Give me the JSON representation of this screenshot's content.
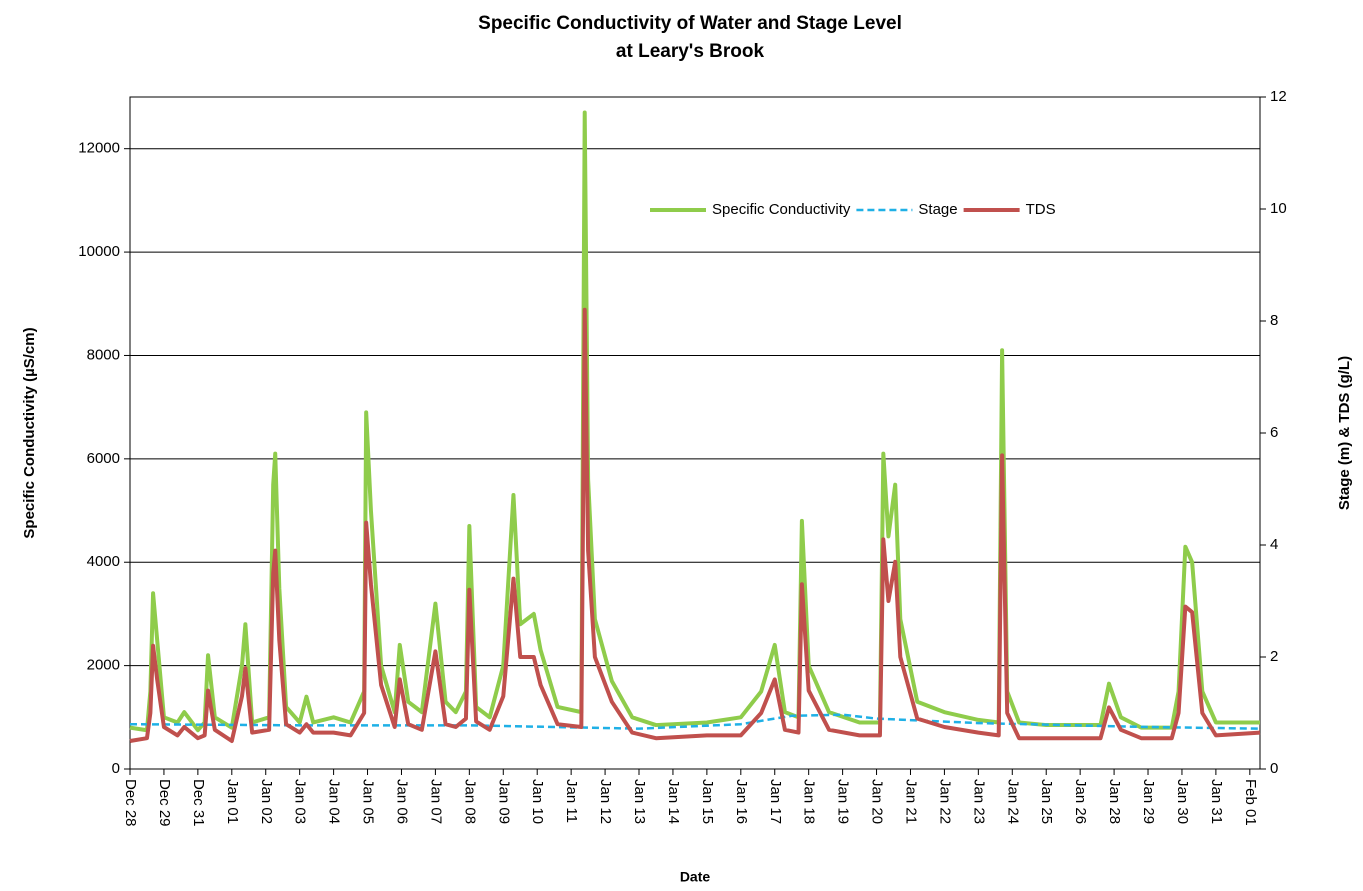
{
  "chart_data": {
    "type": "line",
    "title": [
      "Specific Conductivity of Water and Stage Level",
      "at Leary's Brook"
    ],
    "xlabel": "Date",
    "ylabel": "Specific Conductivity (µS/cm)",
    "y2label": "Stage (m) & TDS (g/L)",
    "xlim": [
      0,
      33.3
    ],
    "xticks": [
      {
        "value": 0,
        "label": "Dec 28"
      },
      {
        "value": 1,
        "label": "Dec 29"
      },
      {
        "value": 2,
        "label": "Dec 31"
      },
      {
        "value": 3,
        "label": "Jan 01"
      },
      {
        "value": 4,
        "label": "Jan 02"
      },
      {
        "value": 5,
        "label": "Jan 03"
      },
      {
        "value": 6,
        "label": "Jan 04"
      },
      {
        "value": 7,
        "label": "Jan 05"
      },
      {
        "value": 8,
        "label": "Jan 06"
      },
      {
        "value": 9,
        "label": "Jan 07"
      },
      {
        "value": 10,
        "label": "Jan 08"
      },
      {
        "value": 11,
        "label": "Jan 09"
      },
      {
        "value": 12,
        "label": "Jan 10"
      },
      {
        "value": 13,
        "label": "Jan 11"
      },
      {
        "value": 14,
        "label": "Jan 12"
      },
      {
        "value": 15,
        "label": "Jan 13"
      },
      {
        "value": 16,
        "label": "Jan 14"
      },
      {
        "value": 17,
        "label": "Jan 15"
      },
      {
        "value": 18,
        "label": "Jan 16"
      },
      {
        "value": 19,
        "label": "Jan 17"
      },
      {
        "value": 20,
        "label": "Jan 18"
      },
      {
        "value": 21,
        "label": "Jan 19"
      },
      {
        "value": 22,
        "label": "Jan 20"
      },
      {
        "value": 23,
        "label": "Jan 21"
      },
      {
        "value": 24,
        "label": "Jan 22"
      },
      {
        "value": 25,
        "label": "Jan 23"
      },
      {
        "value": 26,
        "label": "Jan 24"
      },
      {
        "value": 27,
        "label": "Jan 25"
      },
      {
        "value": 28,
        "label": "Jan 26"
      },
      {
        "value": 29,
        "label": "Jan 28"
      },
      {
        "value": 30,
        "label": "Jan 29"
      },
      {
        "value": 31,
        "label": "Jan 30"
      },
      {
        "value": 32,
        "label": "Jan 31"
      },
      {
        "value": 33,
        "label": "Feb 01"
      }
    ],
    "ylim": [
      0,
      13000
    ],
    "yticks": [
      0,
      2000,
      4000,
      6000,
      8000,
      10000,
      12000
    ],
    "y2lim": [
      0,
      12
    ],
    "y2ticks": [
      0,
      2,
      4,
      6,
      8,
      10,
      12
    ],
    "grid": true,
    "series": [
      {
        "name": "Specific Conductivity",
        "color": "#8fcc4b",
        "dash": false,
        "x": [
          0,
          0.5,
          0.6,
          0.68,
          0.8,
          1.0,
          1.4,
          1.6,
          2.0,
          2.2,
          2.3,
          2.5,
          3.0,
          3.3,
          3.4,
          3.6,
          4.1,
          4.22,
          4.28,
          4.4,
          4.6,
          5.0,
          5.2,
          5.4,
          6.0,
          6.5,
          6.9,
          6.96,
          7.1,
          7.4,
          7.8,
          7.95,
          8.2,
          8.6,
          9.0,
          9.3,
          9.6,
          9.9,
          10.0,
          10.2,
          10.6,
          11.0,
          11.3,
          11.5,
          11.9,
          12.1,
          12.6,
          13.3,
          13.4,
          13.5,
          13.7,
          14.2,
          14.8,
          15.5,
          17.0,
          18.0,
          18.6,
          19.0,
          19.3,
          19.7,
          19.8,
          20.0,
          20.6,
          21.5,
          22.1,
          22.2,
          22.35,
          22.55,
          22.7,
          23.2,
          24.0,
          25.0,
          25.6,
          25.7,
          25.85,
          26.2,
          27.0,
          28.6,
          28.85,
          29.2,
          29.8,
          30.7,
          30.9,
          31.1,
          31.3,
          31.6,
          32.0,
          33.3
        ],
        "values": [
          800,
          750,
          1500,
          3400,
          2500,
          1000,
          900,
          1100,
          750,
          900,
          2200,
          1000,
          800,
          2000,
          2800,
          900,
          1000,
          5500,
          6100,
          3500,
          1200,
          900,
          1400,
          900,
          1000,
          900,
          1500,
          6900,
          5000,
          2000,
          1100,
          2400,
          1300,
          1100,
          3200,
          1300,
          1100,
          1500,
          4700,
          1200,
          1000,
          2000,
          5300,
          2800,
          3000,
          2300,
          1200,
          1100,
          12700,
          5600,
          2900,
          1700,
          1000,
          850,
          900,
          1000,
          1500,
          2400,
          1100,
          1000,
          4800,
          2000,
          1100,
          900,
          900,
          6100,
          4500,
          5500,
          2900,
          1300,
          1100,
          950,
          900,
          8100,
          1500,
          900,
          850,
          850,
          1650,
          1000,
          800,
          800,
          1500,
          4300,
          4000,
          1500,
          900,
          900
        ]
      },
      {
        "name": "Stage",
        "color": "#1fb0e6",
        "dash": true,
        "axis": "y2",
        "x": [
          0,
          5,
          10,
          15,
          18,
          19.5,
          21,
          22,
          25,
          30,
          33.3
        ],
        "values": [
          0.8,
          0.78,
          0.78,
          0.72,
          0.8,
          0.95,
          0.97,
          0.9,
          0.82,
          0.75,
          0.72
        ]
      },
      {
        "name": "TDS",
        "color": "#c0504d",
        "dash": false,
        "axis": "y2",
        "x": [
          0,
          0.5,
          0.6,
          0.68,
          0.8,
          1.0,
          1.4,
          1.6,
          2.0,
          2.2,
          2.3,
          2.5,
          3.0,
          3.3,
          3.4,
          3.6,
          4.1,
          4.22,
          4.28,
          4.4,
          4.6,
          5.0,
          5.2,
          5.4,
          6.0,
          6.5,
          6.9,
          6.96,
          7.1,
          7.4,
          7.8,
          7.95,
          8.2,
          8.6,
          9.0,
          9.3,
          9.6,
          9.9,
          10.0,
          10.2,
          10.6,
          11.0,
          11.3,
          11.5,
          11.9,
          12.1,
          12.6,
          13.3,
          13.4,
          13.5,
          13.7,
          14.2,
          14.8,
          15.5,
          17.0,
          18.0,
          18.6,
          19.0,
          19.3,
          19.7,
          19.8,
          20.0,
          20.6,
          21.5,
          22.1,
          22.2,
          22.35,
          22.55,
          22.7,
          23.2,
          24.0,
          25.0,
          25.6,
          25.7,
          25.85,
          26.2,
          27.0,
          28.6,
          28.85,
          29.2,
          29.8,
          30.7,
          30.9,
          31.1,
          31.3,
          31.6,
          32.0,
          33.3
        ],
        "values": [
          0.5,
          0.55,
          1.0,
          2.2,
          1.6,
          0.75,
          0.6,
          0.75,
          0.55,
          0.6,
          1.4,
          0.7,
          0.5,
          1.3,
          1.8,
          0.65,
          0.7,
          3.5,
          3.9,
          2.3,
          0.8,
          0.65,
          0.8,
          0.65,
          0.65,
          0.6,
          1.0,
          4.4,
          3.3,
          1.5,
          0.75,
          1.6,
          0.8,
          0.7,
          2.1,
          0.8,
          0.75,
          0.9,
          3.2,
          0.85,
          0.7,
          1.3,
          3.4,
          2.0,
          2.0,
          1.5,
          0.8,
          0.75,
          8.2,
          3.9,
          2.0,
          1.2,
          0.65,
          0.55,
          0.6,
          0.6,
          1.0,
          1.6,
          0.7,
          0.65,
          3.3,
          1.4,
          0.7,
          0.6,
          0.6,
          4.1,
          3.0,
          3.7,
          2.0,
          0.9,
          0.75,
          0.65,
          0.6,
          5.6,
          1.0,
          0.55,
          0.55,
          0.55,
          1.1,
          0.7,
          0.55,
          0.55,
          1.0,
          2.9,
          2.8,
          1.0,
          0.6,
          0.65
        ]
      }
    ]
  }
}
